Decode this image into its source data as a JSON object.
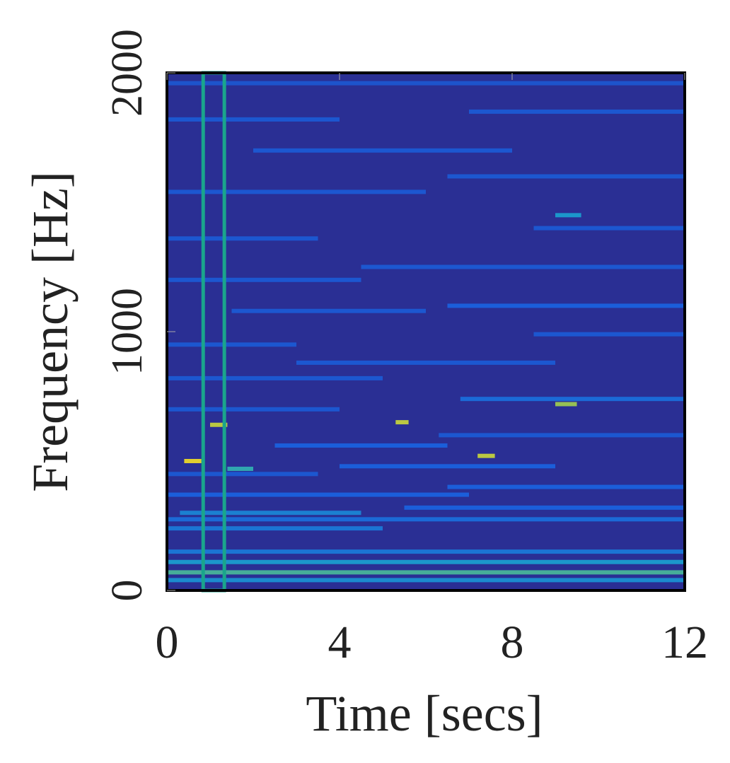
{
  "chart_data": {
    "type": "spectrogram",
    "xlabel": "Time [secs]",
    "ylabel": "Frequency [Hz]",
    "xlim": [
      0,
      12
    ],
    "ylim": [
      0,
      2000
    ],
    "xticks": [
      0,
      4,
      8,
      12
    ],
    "yticks": [
      0,
      1000,
      2000
    ],
    "background_color": "#2a2f94",
    "highlight": {
      "x": [
        0.84,
        1.33
      ],
      "color": "#1aa58c"
    },
    "segments": [
      [
        0,
        12,
        40,
        0.55
      ],
      [
        0,
        12,
        70,
        0.75
      ],
      [
        0,
        12,
        110,
        0.6
      ],
      [
        0,
        12,
        150,
        0.45
      ],
      [
        0,
        5,
        240,
        0.45
      ],
      [
        0,
        12,
        275,
        0.4
      ],
      [
        0.3,
        4.5,
        300,
        0.5
      ],
      [
        5.5,
        12,
        320,
        0.35
      ],
      [
        0,
        7,
        370,
        0.35
      ],
      [
        6.5,
        12,
        400,
        0.35
      ],
      [
        0,
        3.5,
        450,
        0.3
      ],
      [
        4,
        9,
        480,
        0.35
      ],
      [
        0.4,
        0.8,
        500,
        1.0
      ],
      [
        1.4,
        2.0,
        470,
        0.7
      ],
      [
        2.5,
        6.5,
        560,
        0.35
      ],
      [
        7.2,
        7.6,
        520,
        0.95
      ],
      [
        6.3,
        12,
        600,
        0.3
      ],
      [
        1.0,
        1.4,
        640,
        0.95
      ],
      [
        5.3,
        5.6,
        650,
        0.95
      ],
      [
        0,
        4,
        700,
        0.3
      ],
      [
        9.0,
        9.5,
        720,
        0.9
      ],
      [
        6.8,
        12,
        740,
        0.4
      ],
      [
        0,
        5,
        820,
        0.3
      ],
      [
        3.0,
        9.0,
        880,
        0.3
      ],
      [
        0,
        3.0,
        950,
        0.3
      ],
      [
        8.5,
        12,
        990,
        0.3
      ],
      [
        1.5,
        6.0,
        1080,
        0.3
      ],
      [
        6.5,
        12,
        1100,
        0.35
      ],
      [
        0,
        4.5,
        1200,
        0.3
      ],
      [
        4.5,
        12,
        1250,
        0.3
      ],
      [
        0,
        3.5,
        1360,
        0.3
      ],
      [
        8.5,
        12,
        1400,
        0.3
      ],
      [
        9.0,
        9.6,
        1450,
        0.6
      ],
      [
        0,
        6.0,
        1540,
        0.3
      ],
      [
        6.5,
        12,
        1600,
        0.3
      ],
      [
        2.0,
        8.0,
        1700,
        0.3
      ],
      [
        0,
        4.0,
        1820,
        0.3
      ],
      [
        7.0,
        12,
        1850,
        0.3
      ],
      [
        0,
        12,
        1960,
        0.28
      ]
    ]
  }
}
